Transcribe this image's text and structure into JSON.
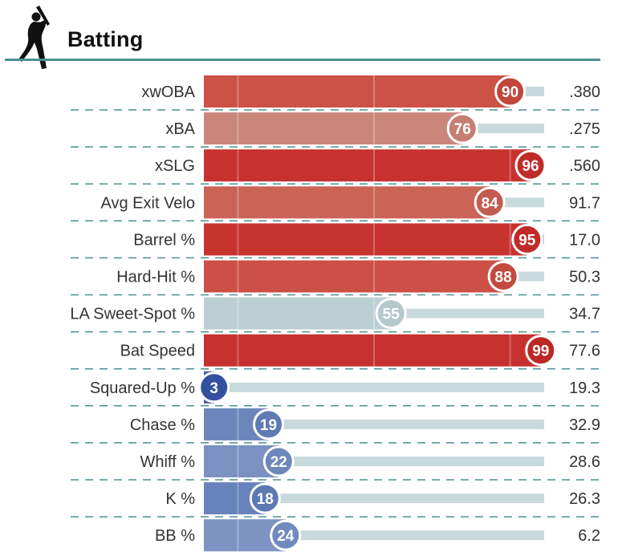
{
  "header": {
    "title": "Batting",
    "icon": "batter-silhouette-icon",
    "accent_color": "#4b8f94"
  },
  "colors": {
    "track": "#c9dadc",
    "separator": "#4b8f94",
    "pct_circle_stroke": "#ffffff"
  },
  "chart_data": {
    "type": "bar",
    "orientation": "horizontal",
    "xlim": [
      0,
      100
    ],
    "categories": [
      "xwOBA",
      "xBA",
      "xSLG",
      "Avg Exit Velo",
      "Barrel %",
      "Hard-Hit %",
      "LA Sweet-Spot %",
      "Bat Speed",
      "Squared-Up %",
      "Chase %",
      "Whiff %",
      "K %",
      "BB %"
    ],
    "percentiles": [
      90,
      76,
      96,
      84,
      95,
      88,
      55,
      99,
      3,
      19,
      22,
      18,
      24
    ],
    "values": [
      ".380",
      ".275",
      ".560",
      "91.7",
      "17.0",
      "50.3",
      "34.7",
      "77.6",
      "19.3",
      "32.9",
      "28.6",
      "26.3",
      "6.2"
    ],
    "bar_colors": [
      "#cd5246",
      "#c9877b",
      "#c7322f",
      "#ca6457",
      "#c7332f",
      "#cc5045",
      "#bbcfd3",
      "#c6312e",
      "#3e5ea5",
      "#6c86bc",
      "#7a91c2",
      "#6882bb",
      "#7d94c3"
    ],
    "circle_colors": [
      "#c2463b",
      "#c57f73",
      "#bf2b29",
      "#c35c4f",
      "#c02b29",
      "#c34a3f",
      "#b5c9cd",
      "#bb2826",
      "#3350a0",
      "#5f79b3",
      "#6e87bb",
      "#5d78b2",
      "#7189bd"
    ]
  }
}
